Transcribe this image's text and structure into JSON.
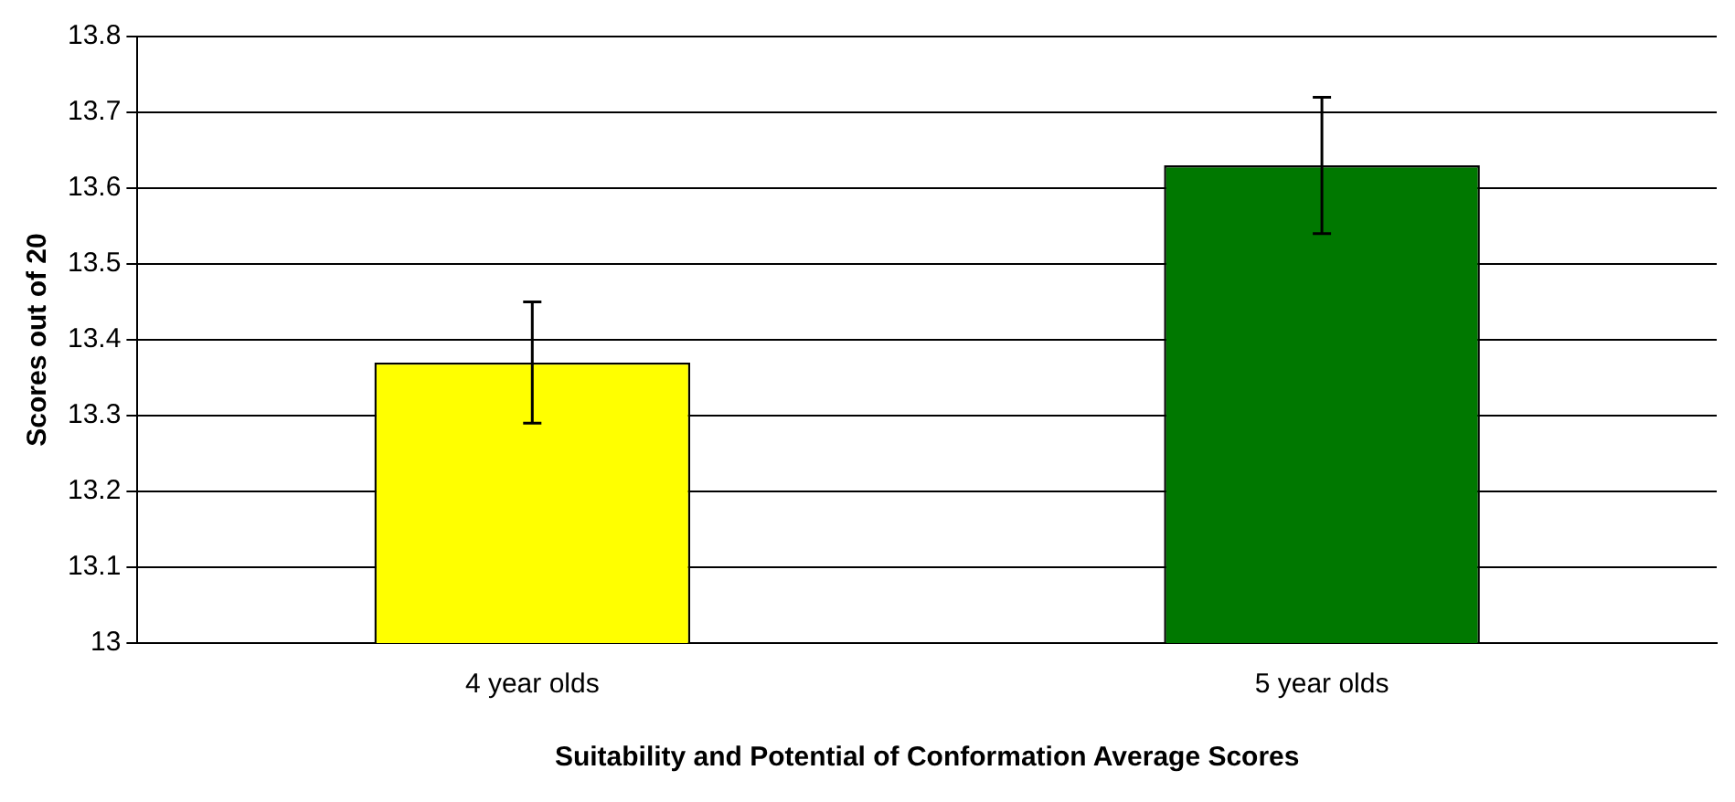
{
  "chart_data": {
    "type": "bar",
    "xlabel": "Suitability and Potential of Conformation Average Scores",
    "ylabel": "Scores out of 20",
    "categories": [
      "4 year olds",
      "5 year olds"
    ],
    "values": [
      13.37,
      13.63
    ],
    "colors": [
      "#ffff00",
      "#007800"
    ],
    "errors": [
      0.08,
      0.09
    ],
    "ylim": [
      13,
      13.8
    ],
    "yticks": [
      13,
      13.1,
      13.2,
      13.3,
      13.4,
      13.5,
      13.6,
      13.7,
      13.8
    ],
    "grid": "y",
    "legend": false
  }
}
